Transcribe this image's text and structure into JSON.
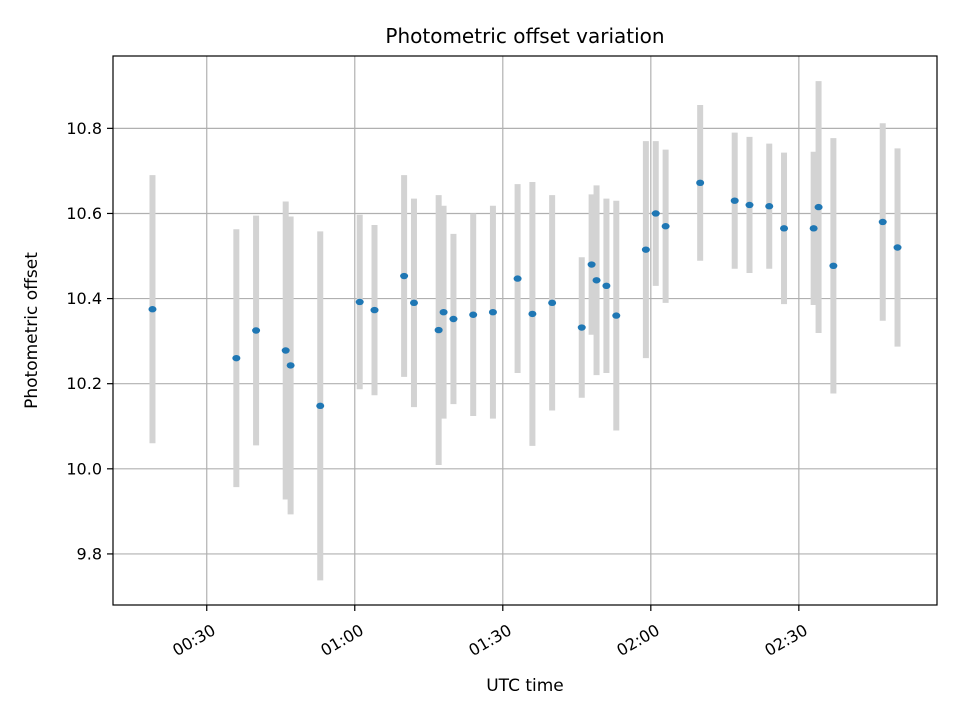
{
  "chart_data": {
    "type": "scatter",
    "title": "Photometric offset variation",
    "xlabel": "UTC time",
    "ylabel": "Photometric offset",
    "x_unit": "UTC HH:MM",
    "xlim": [
      "00:11",
      "02:58"
    ],
    "ylim": [
      9.68,
      10.97
    ],
    "x_ticks": [
      "00:30",
      "01:00",
      "01:30",
      "02:00",
      "02:30"
    ],
    "y_ticks": [
      9.8,
      10.0,
      10.2,
      10.4,
      10.6,
      10.8
    ],
    "y_tick_labels": [
      "9.8",
      "10.0",
      "10.2",
      "10.4",
      "10.6",
      "10.8"
    ],
    "grid": true,
    "series": [
      {
        "points": [
          {
            "x": "00:19",
            "y": 10.375,
            "err": 0.315
          },
          {
            "x": "00:36",
            "y": 10.26,
            "err": 0.303
          },
          {
            "x": "00:40",
            "y": 10.325,
            "err": 0.27
          },
          {
            "x": "00:46",
            "y": 10.278,
            "err": 0.35
          },
          {
            "x": "00:47",
            "y": 10.243,
            "err": 0.35
          },
          {
            "x": "00:53",
            "y": 10.148,
            "err": 0.41
          },
          {
            "x": "01:01",
            "y": 10.392,
            "err": 0.205
          },
          {
            "x": "01:04",
            "y": 10.373,
            "err": 0.2
          },
          {
            "x": "01:10",
            "y": 10.453,
            "err": 0.237
          },
          {
            "x": "01:12",
            "y": 10.39,
            "err": 0.245
          },
          {
            "x": "01:17",
            "y": 10.326,
            "err": 0.317
          },
          {
            "x": "01:18",
            "y": 10.368,
            "err": 0.25
          },
          {
            "x": "01:20",
            "y": 10.352,
            "err": 0.2
          },
          {
            "x": "01:24",
            "y": 10.362,
            "err": 0.238
          },
          {
            "x": "01:28",
            "y": 10.368,
            "err": 0.25
          },
          {
            "x": "01:33",
            "y": 10.447,
            "err": 0.222
          },
          {
            "x": "01:36",
            "y": 10.364,
            "err": 0.31
          },
          {
            "x": "01:40",
            "y": 10.39,
            "err": 0.253
          },
          {
            "x": "01:46",
            "y": 10.332,
            "err": 0.165
          },
          {
            "x": "01:48",
            "y": 10.48,
            "err": 0.165
          },
          {
            "x": "01:49",
            "y": 10.443,
            "err": 0.223
          },
          {
            "x": "01:51",
            "y": 10.43,
            "err": 0.205
          },
          {
            "x": "01:53",
            "y": 10.36,
            "err": 0.27
          },
          {
            "x": "01:59",
            "y": 10.515,
            "err": 0.255
          },
          {
            "x": "02:01",
            "y": 10.6,
            "err": 0.17
          },
          {
            "x": "02:03",
            "y": 10.57,
            "err": 0.18
          },
          {
            "x": "02:10",
            "y": 10.672,
            "err": 0.183
          },
          {
            "x": "02:17",
            "y": 10.63,
            "err": 0.16
          },
          {
            "x": "02:20",
            "y": 10.62,
            "err": 0.16
          },
          {
            "x": "02:24",
            "y": 10.617,
            "err": 0.147
          },
          {
            "x": "02:27",
            "y": 10.565,
            "err": 0.178
          },
          {
            "x": "02:33",
            "y": 10.565,
            "err": 0.18
          },
          {
            "x": "02:34",
            "y": 10.615,
            "err": 0.296
          },
          {
            "x": "02:37",
            "y": 10.477,
            "err": 0.3
          },
          {
            "x": "02:47",
            "y": 10.58,
            "err": 0.232
          },
          {
            "x": "02:50",
            "y": 10.52,
            "err": 0.233
          }
        ]
      }
    ],
    "colors": {
      "marker": "#1f77b4",
      "errorbar": "#d3d3d3",
      "grid": "#b0b0b0",
      "axes": "#000000"
    }
  }
}
